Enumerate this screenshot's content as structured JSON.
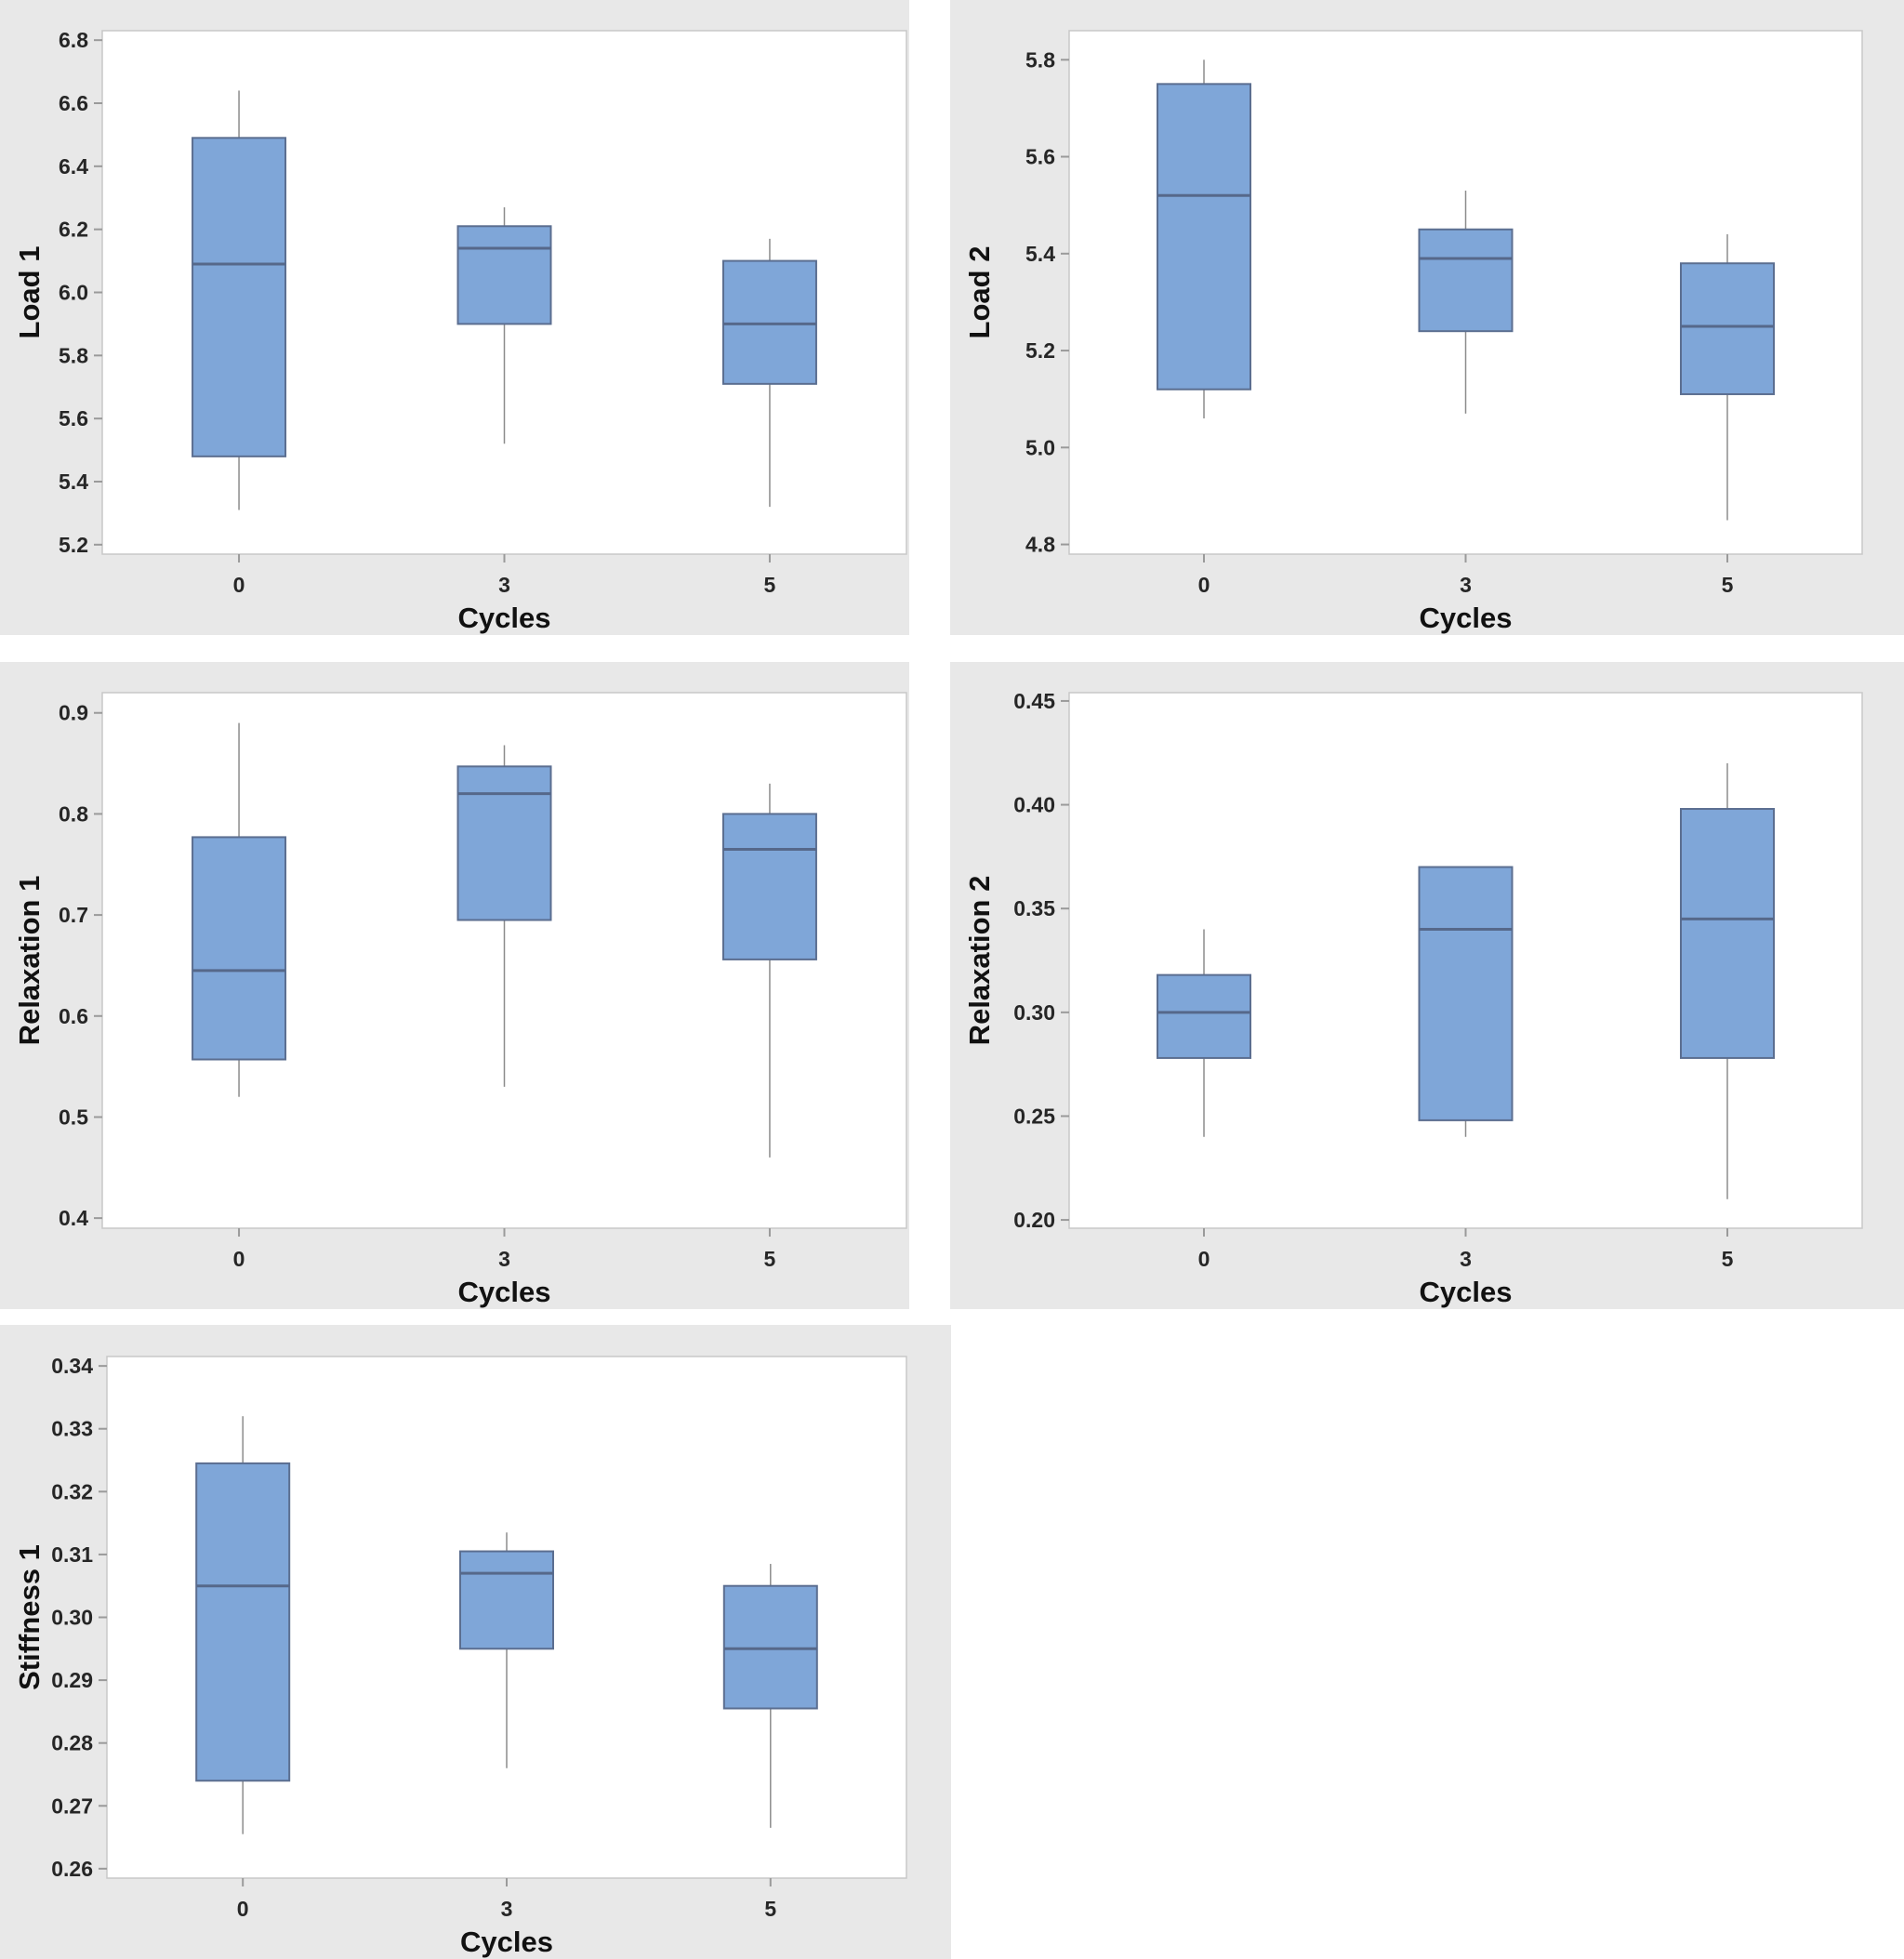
{
  "page": {
    "background": "#ffffff",
    "description_categories_label": "Cycles"
  },
  "colors": {
    "panel_bg": "#e8e8e8",
    "plot_bg": "#ffffff",
    "plot_border": "#c8c8c8",
    "box_fill": "#7fa6d8",
    "box_stroke": "#5b6e90",
    "median_line": "#56688a",
    "whisker_line": "#8c8c8c",
    "tick_mark": "#9a9a9a",
    "tick_text": "#262626",
    "axis_title_text": "#111111"
  },
  "chart_data": [
    {
      "type": "box",
      "title": "",
      "ylabel": "Load 1",
      "xlabel": "Cycles",
      "categories": [
        "0",
        "3",
        "5"
      ],
      "ylim": [
        5.17,
        6.83
      ],
      "yticks": {
        "start": 5.2,
        "step": 0.2,
        "count": 9,
        "decimals": 1
      },
      "grid": false,
      "legend": "none",
      "boxes": [
        {
          "whisker_low": 5.31,
          "q1": 5.48,
          "median": 6.09,
          "q3": 6.49,
          "whisker_high": 6.64
        },
        {
          "whisker_low": 5.52,
          "q1": 5.9,
          "median": 6.14,
          "q3": 6.21,
          "whisker_high": 6.27
        },
        {
          "whisker_low": 5.32,
          "q1": 5.71,
          "median": 5.9,
          "q3": 6.1,
          "whisker_high": 6.17
        }
      ]
    },
    {
      "type": "box",
      "title": "",
      "ylabel": "Load 2",
      "xlabel": "Cycles",
      "categories": [
        "0",
        "3",
        "5"
      ],
      "ylim": [
        4.78,
        5.86
      ],
      "yticks": {
        "start": 4.8,
        "step": 0.2,
        "count": 6,
        "decimals": 1
      },
      "grid": false,
      "legend": "none",
      "boxes": [
        {
          "whisker_low": 5.06,
          "q1": 5.12,
          "median": 5.52,
          "q3": 5.75,
          "whisker_high": 5.8
        },
        {
          "whisker_low": 5.07,
          "q1": 5.24,
          "median": 5.39,
          "q3": 5.45,
          "whisker_high": 5.53
        },
        {
          "whisker_low": 4.85,
          "q1": 5.11,
          "median": 5.25,
          "q3": 5.38,
          "whisker_high": 5.44
        }
      ]
    },
    {
      "type": "box",
      "title": "",
      "ylabel": "Relaxation 1",
      "xlabel": "Cycles",
      "categories": [
        "0",
        "3",
        "5"
      ],
      "ylim": [
        0.39,
        0.92
      ],
      "yticks": {
        "start": 0.4,
        "step": 0.1,
        "count": 6,
        "decimals": 1
      },
      "grid": false,
      "legend": "none",
      "boxes": [
        {
          "whisker_low": 0.52,
          "q1": 0.557,
          "median": 0.645,
          "q3": 0.777,
          "whisker_high": 0.89
        },
        {
          "whisker_low": 0.53,
          "q1": 0.695,
          "median": 0.82,
          "q3": 0.847,
          "whisker_high": 0.868
        },
        {
          "whisker_low": 0.46,
          "q1": 0.656,
          "median": 0.765,
          "q3": 0.8,
          "whisker_high": 0.83
        }
      ]
    },
    {
      "type": "box",
      "title": "",
      "ylabel": "Relaxation 2",
      "xlabel": "Cycles",
      "categories": [
        "0",
        "3",
        "5"
      ],
      "ylim": [
        0.196,
        0.454
      ],
      "yticks": {
        "start": 0.2,
        "step": 0.05,
        "count": 6,
        "decimals": 2
      },
      "grid": false,
      "legend": "none",
      "boxes": [
        {
          "whisker_low": 0.24,
          "q1": 0.278,
          "median": 0.3,
          "q3": 0.318,
          "whisker_high": 0.34
        },
        {
          "whisker_low": 0.24,
          "q1": 0.248,
          "median": 0.34,
          "q3": 0.37,
          "whisker_high": 0.37
        },
        {
          "whisker_low": 0.21,
          "q1": 0.278,
          "median": 0.345,
          "q3": 0.398,
          "whisker_high": 0.42
        }
      ]
    },
    {
      "type": "box",
      "title": "",
      "ylabel": "Stiffness 1",
      "xlabel": "Cycles",
      "categories": [
        "0",
        "3",
        "5"
      ],
      "ylim": [
        0.2585,
        0.3415
      ],
      "yticks": {
        "start": 0.26,
        "step": 0.01,
        "count": 9,
        "decimals": 2
      },
      "grid": false,
      "legend": "none",
      "boxes": [
        {
          "whisker_low": 0.2655,
          "q1": 0.274,
          "median": 0.305,
          "q3": 0.3245,
          "whisker_high": 0.332
        },
        {
          "whisker_low": 0.276,
          "q1": 0.295,
          "median": 0.307,
          "q3": 0.3105,
          "whisker_high": 0.3135
        },
        {
          "whisker_low": 0.2665,
          "q1": 0.2855,
          "median": 0.295,
          "q3": 0.305,
          "whisker_high": 0.3085
        }
      ]
    }
  ]
}
